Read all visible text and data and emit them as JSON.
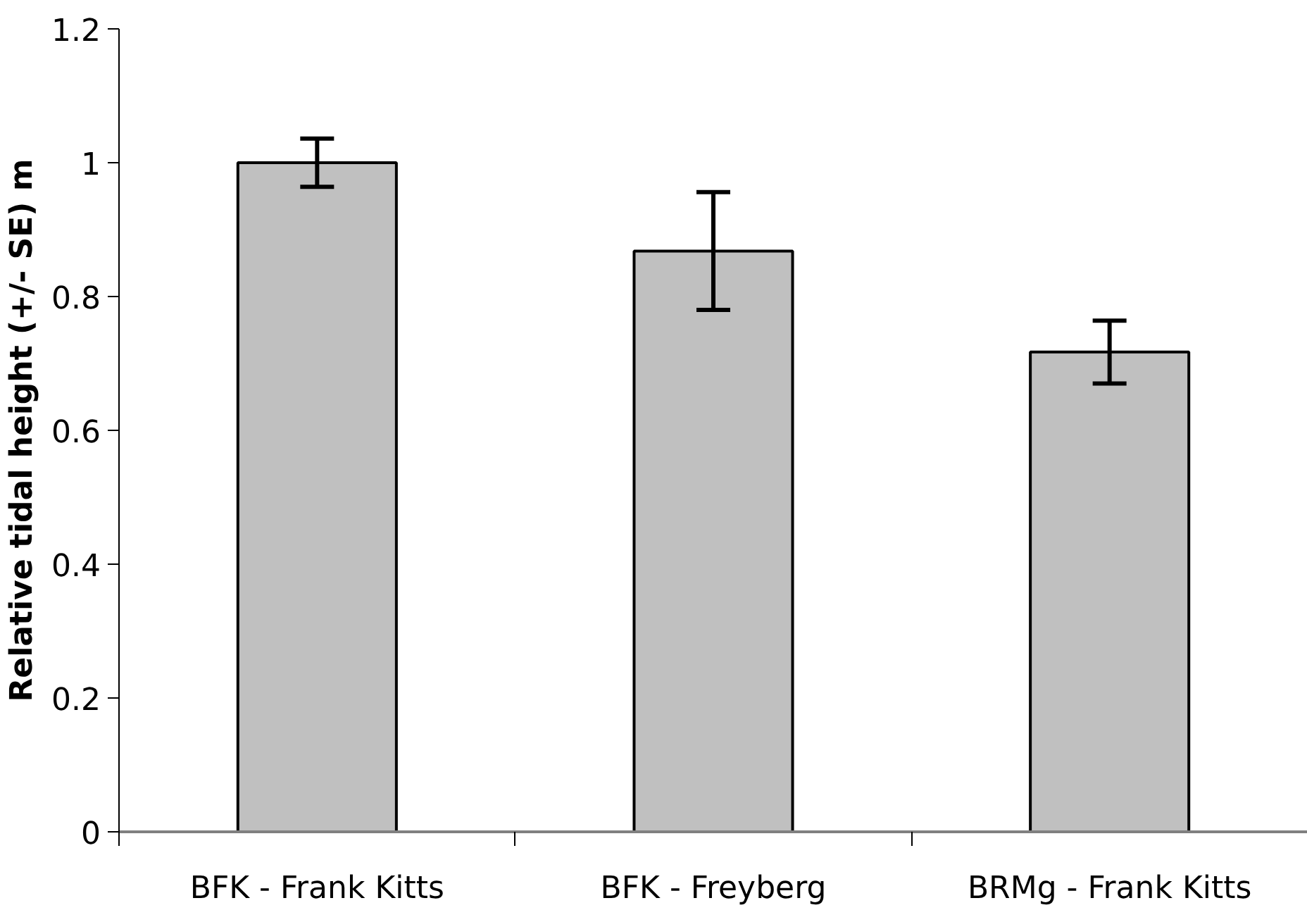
{
  "chart_data": {
    "type": "bar",
    "ylabel": "Relative tidal height (+/- SE) m",
    "categories": [
      "BFK - Frank Kitts",
      "BFK - Freyberg",
      "BRMg - Frank Kitts"
    ],
    "values": [
      1.0,
      0.868,
      0.717
    ],
    "errors": [
      0.036,
      0.088,
      0.047
    ],
    "color": "#c0c0c0",
    "ylim": [
      0,
      1.2
    ],
    "yticks": [
      0,
      0.2,
      0.4,
      0.6,
      0.8,
      1,
      1.2
    ],
    "grid": false
  }
}
